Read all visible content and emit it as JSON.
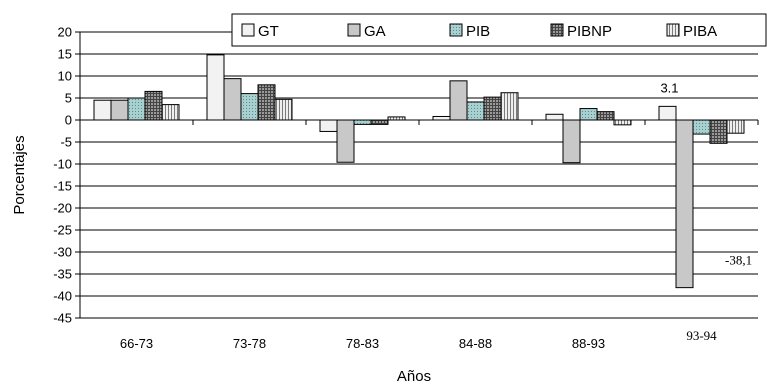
{
  "chart_data": {
    "type": "bar",
    "xlabel": "Años",
    "ylabel": "Porcentajes",
    "ylim": [
      -45,
      20
    ],
    "yticks": [
      20,
      15,
      10,
      5,
      0,
      -5,
      -10,
      -15,
      -20,
      -25,
      -30,
      -35,
      -40,
      -45
    ],
    "ytick_labels": [
      "20",
      "15",
      "10",
      "5",
      "0",
      "-5",
      "-10",
      "-15",
      "-20",
      "-25",
      "-30",
      "-35",
      "-40",
      "-45"
    ],
    "grid": true,
    "legend_position": "top",
    "categories": [
      "66-73",
      "73-78",
      "78-83",
      "84-88",
      "88-93",
      "93-94"
    ],
    "series": [
      {
        "name": "GT",
        "values": [
          4.5,
          14.8,
          -2.6,
          0.8,
          1.3,
          3.1
        ],
        "fill": "#f2f2f2",
        "pattern": "solid"
      },
      {
        "name": "GA",
        "values": [
          4.5,
          9.4,
          -9.6,
          8.9,
          -9.7,
          -38.1
        ],
        "fill": "#c8c8c8",
        "pattern": "solid"
      },
      {
        "name": "PIB",
        "values": [
          5.0,
          6.0,
          -1.0,
          4.1,
          2.6,
          -3.2
        ],
        "fill": "#a8d0d0",
        "pattern": "dots"
      },
      {
        "name": "PIBNP",
        "values": [
          6.5,
          8.0,
          -1.0,
          5.2,
          1.9,
          -5.3
        ],
        "fill": "#909090",
        "pattern": "grid"
      },
      {
        "name": "PIBA",
        "values": [
          3.5,
          4.7,
          0.7,
          6.2,
          -1.1,
          -3.0
        ],
        "fill": "#e6e6e6",
        "pattern": "vlines"
      }
    ],
    "annotations": [
      {
        "text": "3.1",
        "category": "93-94",
        "series": "GT"
      },
      {
        "text": "-38,1",
        "category": "93-94",
        "series": "GA"
      }
    ]
  }
}
